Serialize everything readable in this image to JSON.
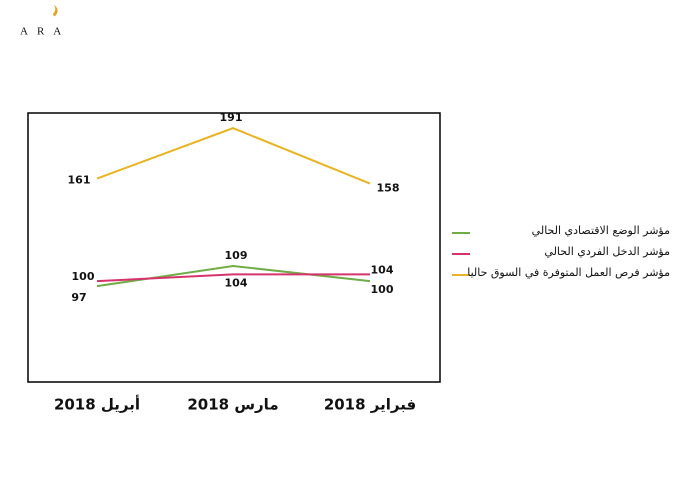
{
  "logo": "ARA",
  "chart_data": {
    "type": "line",
    "categories": [
      "أبريل 2018",
      "مارس 2018",
      "فبراير 2018"
    ],
    "series": [
      {
        "name": "مؤشر الوضع الاقتصادي الحالي",
        "color": "#70ad47",
        "values": [
          97,
          109,
          100
        ]
      },
      {
        "name": "مؤشر الدخل الفردي الحالي",
        "color": "#d6336c",
        "values": [
          100,
          104,
          104
        ]
      },
      {
        "name": "مؤشر فرص العمل المتوفرة في السوق حاليا",
        "color": "#e8b423",
        "values": [
          161,
          191,
          158
        ]
      }
    ],
    "ylim": [
      40,
      200
    ]
  }
}
